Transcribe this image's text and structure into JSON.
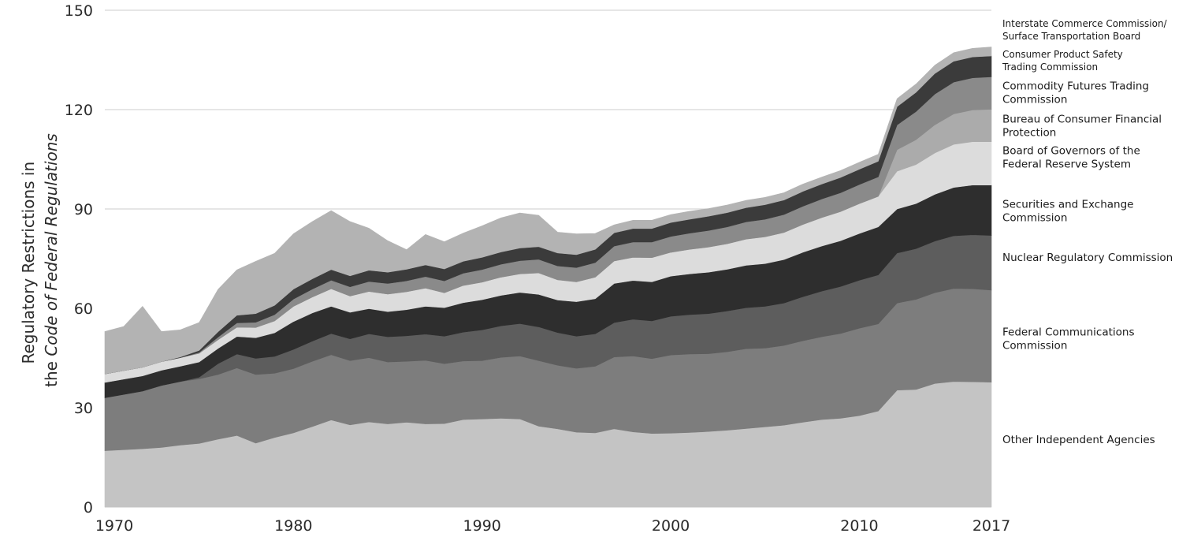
{
  "chart_data": {
    "type": "area",
    "stacked": true,
    "ylabel_line1": "Regulatory Restrictions in",
    "ylabel_line2_prefix": "the ",
    "ylabel_line2_italic": "Code of Federal Regulations",
    "ylim": [
      0,
      150
    ],
    "xlim": [
      1970,
      2017
    ],
    "yticks": [
      0,
      30,
      60,
      90,
      120,
      150
    ],
    "xticks": [
      {
        "value": 1970,
        "label": "1970"
      },
      {
        "value": 1980,
        "label": "1980"
      },
      {
        "value": 1990,
        "label": "1990"
      },
      {
        "value": 2000,
        "label": "2000"
      },
      {
        "value": 2010,
        "label": "2010"
      },
      {
        "value": 2017,
        "label": "2017"
      }
    ],
    "grid": "horizontal at 90 and 120",
    "x": [
      1970,
      1971,
      1972,
      1973,
      1974,
      1975,
      1976,
      1977,
      1978,
      1979,
      1980,
      1981,
      1982,
      1983,
      1984,
      1985,
      1986,
      1987,
      1988,
      1989,
      1990,
      1991,
      1992,
      1993,
      1994,
      1995,
      1996,
      1997,
      1998,
      1999,
      2000,
      2001,
      2002,
      2003,
      2004,
      2005,
      2006,
      2007,
      2008,
      2009,
      2010,
      2011,
      2012,
      2013,
      2014,
      2015,
      2016,
      2017
    ],
    "series": [
      {
        "name": "Other Independent Agencies",
        "color": "#c4c4c4",
        "label_lines": [
          "Other Independent Agencies"
        ],
        "values": [
          17,
          17.3,
          17.6,
          18,
          18.7,
          19.2,
          20.5,
          21.6,
          19.3,
          21,
          22.4,
          24.3,
          26.3,
          24.8,
          25.7,
          25.1,
          25.6,
          25.1,
          25.2,
          26.4,
          26.6,
          26.8,
          26.6,
          24.4,
          23.6,
          22.6,
          22.4,
          23.6,
          22.7,
          22.2,
          22.3,
          22.5,
          22.8,
          23.2,
          23.7,
          24.2,
          24.7,
          25.6,
          26.4,
          26.8,
          27.6,
          29,
          35.3,
          35.5,
          37.3,
          37.9,
          37.8,
          37.7
        ]
      },
      {
        "name": "Federal Communications Commission",
        "color": "#7d7d7d",
        "label_lines": [
          "Federal Communications",
          "Commission"
        ],
        "values": [
          16,
          16.7,
          17.4,
          18.7,
          19.2,
          19.5,
          19.5,
          20.4,
          20.7,
          19.4,
          19.4,
          19.7,
          19.7,
          19.4,
          19.4,
          18.7,
          18.4,
          19.2,
          18.1,
          17.7,
          17.6,
          18.4,
          19,
          19.8,
          19.2,
          19.3,
          20.1,
          21.7,
          22.9,
          22.6,
          23.6,
          23.7,
          23.5,
          23.7,
          24.1,
          23.8,
          24.1,
          24.6,
          25,
          25.6,
          26.4,
          26.3,
          26.3,
          27.2,
          27.4,
          28.1,
          28.1,
          27.8
        ]
      },
      {
        "name": "Nuclear Regulatory Commission",
        "color": "#5d5d5d",
        "label_lines": [
          "Nuclear Regulatory Commission"
        ],
        "values": [
          0,
          0,
          0,
          0,
          0,
          0.5,
          3.3,
          4.2,
          4.9,
          5.1,
          5.8,
          6.1,
          6.4,
          6.6,
          7.2,
          7.6,
          7.7,
          7.9,
          8.3,
          8.7,
          9.3,
          9.5,
          9.8,
          10.2,
          9.9,
          9.7,
          9.8,
          10.4,
          11.1,
          11.4,
          11.7,
          11.9,
          12.1,
          12.3,
          12.4,
          12.6,
          12.8,
          13.3,
          13.8,
          14.2,
          14.5,
          14.8,
          15.1,
          15.3,
          15.6,
          15.9,
          16.3,
          16.5
        ]
      },
      {
        "name": "Securities and Exchange Commission",
        "color": "#2e2e2e",
        "label_lines": [
          "Securities and Exchange",
          "Commission"
        ],
        "values": [
          4.6,
          4.6,
          4.6,
          4.6,
          4.6,
          4.6,
          4.6,
          5.3,
          6.2,
          7.1,
          8.4,
          8.5,
          8.2,
          8,
          7.6,
          7.6,
          7.9,
          8.4,
          8.6,
          8.9,
          9.1,
          9.2,
          9.4,
          9.8,
          9.8,
          10.4,
          10.6,
          11.8,
          11.7,
          11.8,
          12.1,
          12.3,
          12.5,
          12.6,
          12.8,
          12.9,
          13.1,
          13.4,
          13.6,
          13.8,
          14.1,
          14.5,
          13.3,
          13.6,
          14.1,
          14.6,
          15,
          15.2
        ]
      },
      {
        "name": "Board of Governors of the Federal Reserve System",
        "color": "#dcdcdc",
        "label_lines": [
          "Board of Governors of the",
          "Federal Reserve System"
        ],
        "values": [
          2.6,
          2.6,
          2.6,
          2.6,
          2.6,
          2.6,
          2.6,
          2.8,
          3.1,
          3.6,
          4.6,
          4.8,
          5.3,
          4.9,
          5.2,
          5.3,
          5.4,
          5.5,
          4.5,
          5.2,
          5.3,
          5.5,
          5.6,
          6.5,
          6.1,
          6,
          6.5,
          6.8,
          7,
          7.3,
          7.2,
          7.4,
          7.6,
          7.7,
          7.9,
          8.1,
          8.2,
          8.4,
          8.6,
          8.8,
          9,
          9.2,
          11.4,
          11.8,
          12.5,
          13,
          13.1,
          13.1
        ]
      },
      {
        "name": "Bureau of Consumer Financial Protection",
        "color": "#ababab",
        "label_lines": [
          "Bureau of Consumer Financial",
          "Protection"
        ],
        "values": [
          0,
          0,
          0,
          0,
          0,
          0,
          0,
          0,
          0,
          0,
          0,
          0,
          0,
          0,
          0,
          0,
          0,
          0,
          0,
          0,
          0,
          0,
          0,
          0,
          0,
          0,
          0,
          0,
          0,
          0,
          0,
          0,
          0,
          0,
          0,
          0,
          0,
          0,
          0,
          0,
          0,
          0,
          6.5,
          7.5,
          8.5,
          9.2,
          9.6,
          9.8
        ]
      },
      {
        "name": "Commodity Futures Trading Commission",
        "color": "#8a8a8a",
        "label_lines": [
          "Commodity Futures Trading",
          "Commission"
        ],
        "values": [
          0,
          0,
          0,
          0,
          0,
          0.3,
          0.8,
          1.3,
          1.6,
          1.9,
          2.2,
          2.4,
          2.6,
          2.8,
          3,
          3.2,
          3.3,
          3.5,
          3.6,
          3.7,
          3.8,
          3.9,
          4,
          4.1,
          4.2,
          4.3,
          4.4,
          4.5,
          4.6,
          4.7,
          4.8,
          4.9,
          5,
          5.1,
          5.2,
          5.3,
          5.4,
          5.5,
          5.6,
          5.7,
          5.8,
          5.9,
          7.5,
          8.5,
          9.3,
          9.6,
          9.7,
          9.8
        ]
      },
      {
        "name": "Consumer Product Safety Trading Commission",
        "color": "#3b3b3b",
        "label_lines": [
          "Consumer Product Safety",
          "Trading Commission"
        ],
        "values": [
          0,
          0,
          0,
          0,
          0.2,
          0.6,
          1.6,
          2.3,
          2.6,
          2.8,
          3,
          3.1,
          3.2,
          3.3,
          3.4,
          3.4,
          3.5,
          3.5,
          3.6,
          3.6,
          3.7,
          3.7,
          3.8,
          3.8,
          3.9,
          3.9,
          4,
          4,
          4.1,
          4.1,
          4.2,
          4.2,
          4.3,
          4.3,
          4.3,
          4.4,
          4.4,
          4.5,
          4.5,
          4.6,
          4.6,
          4.7,
          5.5,
          5.8,
          6.2,
          6.3,
          6.3,
          6.3
        ]
      },
      {
        "name": "Interstate Commerce Commission/ Surface Transportation Board",
        "color": "#b3b3b3",
        "label_lines": [
          "Interstate Commerce Commission/",
          "Surface Transportation Board"
        ],
        "values": [
          12.8,
          13.3,
          18.4,
          9.1,
          8.2,
          8.4,
          12.8,
          13.7,
          15.8,
          15.7,
          16.7,
          17.3,
          17.8,
          16.4,
          12.7,
          9.5,
          5.9,
          9.2,
          8.2,
          8.5,
          9.5,
          10.3,
          10.6,
          9.5,
          6.3,
          6.3,
          4.8,
          2.4,
          2.5,
          2.5,
          2.4,
          2.4,
          2.3,
          2.3,
          2.2,
          2.2,
          2.2,
          2.2,
          2.1,
          2.1,
          2.1,
          2.1,
          2.4,
          2.5,
          2.5,
          2.6,
          2.6,
          2.7
        ]
      }
    ]
  }
}
